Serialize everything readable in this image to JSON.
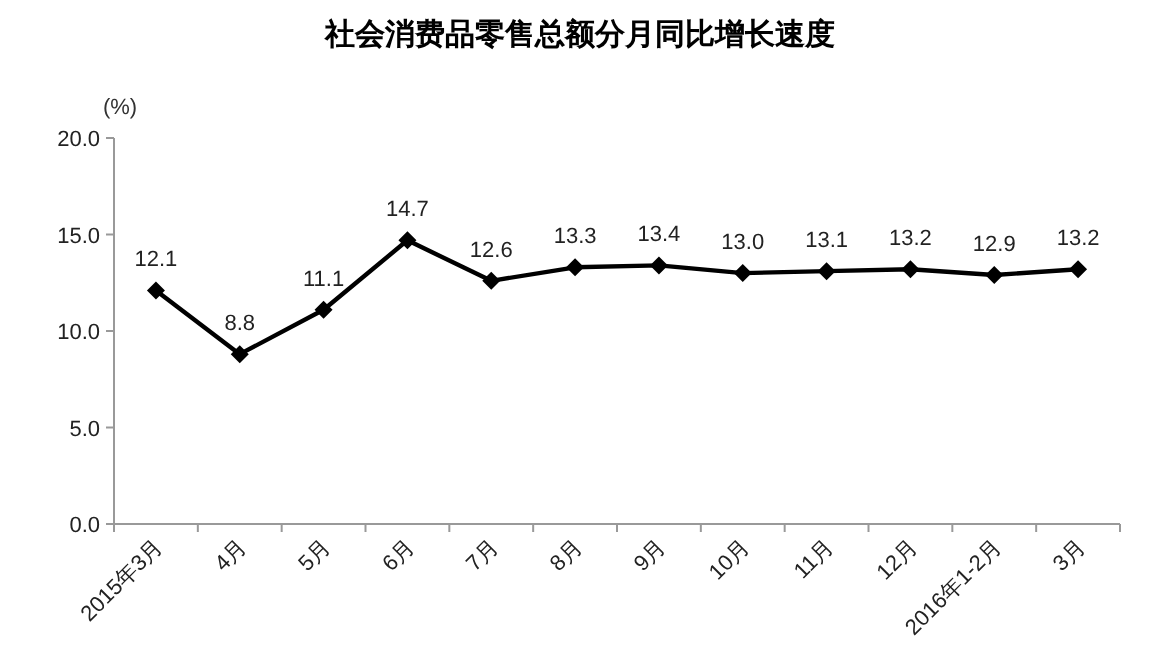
{
  "chart_data": {
    "type": "line",
    "title": "社会消费品零售总额分月同比增长速度",
    "ylabel": "(%)",
    "categories": [
      "2015年3月",
      "4月",
      "5月",
      "6月",
      "7月",
      "8月",
      "9月",
      "10月",
      "11月",
      "12月",
      "2016年1-2月",
      "3月"
    ],
    "series": [
      {
        "color": "#000000",
        "values": [
          12.1,
          8.8,
          11.1,
          14.7,
          12.6,
          13.3,
          13.4,
          13.0,
          13.1,
          13.2,
          12.9,
          13.2
        ],
        "value_labels": [
          "12.1",
          "8.8",
          "11.1",
          "14.7",
          "12.6",
          "13.3",
          "13.4",
          "13.0",
          "13.1",
          "13.2",
          "12.9",
          "13.2"
        ]
      }
    ],
    "ylim": [
      0,
      20
    ],
    "yticks": [
      {
        "value": 0,
        "label": "0.0"
      },
      {
        "value": 5,
        "label": "5.0"
      },
      {
        "value": 10,
        "label": "10.0"
      },
      {
        "value": 15,
        "label": "15.0"
      },
      {
        "value": 20,
        "label": "20.0"
      }
    ],
    "grid": false,
    "marker": "diamond",
    "line_style": "solid"
  }
}
